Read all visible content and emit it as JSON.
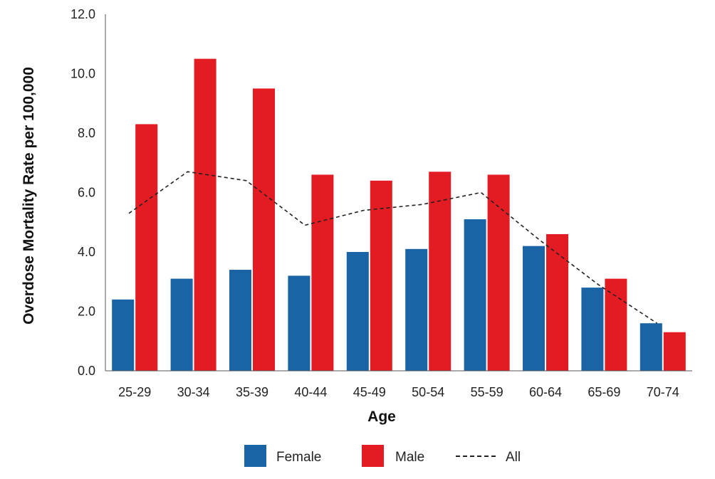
{
  "chart_data": {
    "type": "bar",
    "title": "",
    "xlabel": "Age",
    "ylabel": "Overdose Mortality Rate per 100,000",
    "ylim": [
      0,
      12
    ],
    "yticks": [
      "0.0",
      "2.0",
      "4.0",
      "6.0",
      "8.0",
      "10.0",
      "12.0"
    ],
    "categories": [
      "25-29",
      "30-34",
      "35-39",
      "40-44",
      "45-49",
      "50-54",
      "55-59",
      "60-64",
      "65-69",
      "70-74"
    ],
    "series": [
      {
        "name": "Female",
        "type": "bar",
        "color": "#1a63a5",
        "values": [
          2.4,
          3.1,
          3.4,
          3.2,
          4.0,
          4.1,
          5.1,
          4.2,
          2.8,
          1.6
        ]
      },
      {
        "name": "Male",
        "type": "bar",
        "color": "#e31b23",
        "values": [
          8.3,
          10.5,
          9.5,
          6.6,
          6.4,
          6.7,
          6.6,
          4.6,
          3.1,
          1.3
        ]
      },
      {
        "name": "All",
        "type": "line",
        "style": "dashed",
        "color": "#222222",
        "values": [
          5.3,
          6.7,
          6.4,
          4.9,
          5.4,
          5.6,
          6.0,
          4.4,
          2.9,
          1.6
        ]
      }
    ],
    "grid": false,
    "legend": "bottom-center"
  }
}
